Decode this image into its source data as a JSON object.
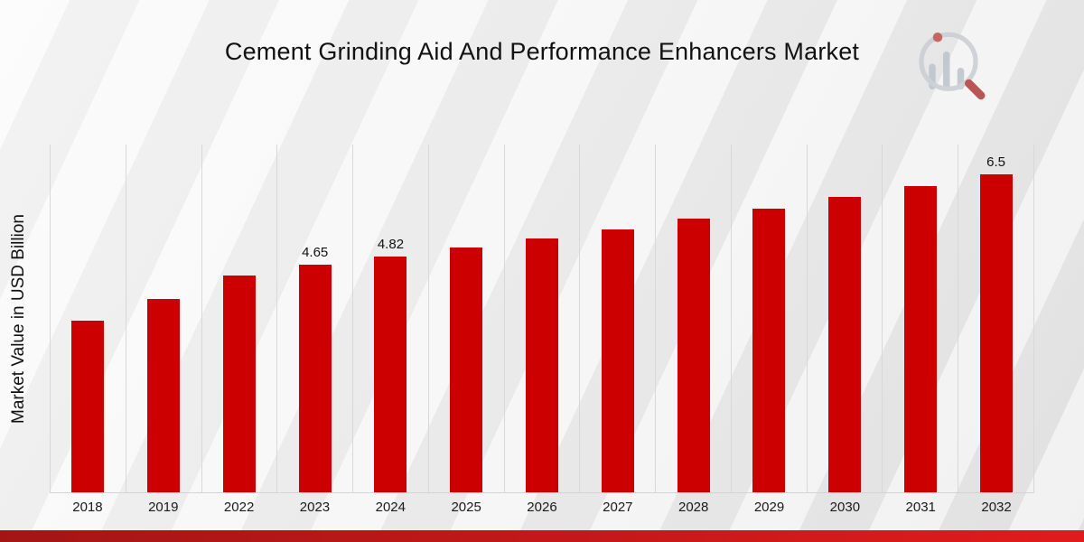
{
  "title": "Cement Grinding Aid And Performance Enhancers Market",
  "ylabel": "Market Value in USD Billion",
  "logo_name": "market-research-logo",
  "colors": {
    "bar": "#cc0000",
    "gridline": "#d8d8d8",
    "footer_gradient_start": "#a31515",
    "footer_gradient_end": "#e11b1b"
  },
  "chart_data": {
    "type": "bar",
    "title": "Cement Grinding Aid And Performance Enhancers Market",
    "xlabel": "",
    "ylabel": "Market Value in USD Billion",
    "categories": [
      "2018",
      "2019",
      "2022",
      "2023",
      "2024",
      "2025",
      "2026",
      "2027",
      "2028",
      "2029",
      "2030",
      "2031",
      "2032"
    ],
    "values": [
      3.5,
      3.95,
      4.43,
      4.65,
      4.82,
      5.0,
      5.18,
      5.37,
      5.58,
      5.8,
      6.03,
      6.26,
      6.5
    ],
    "data_labels": [
      "",
      "",
      "",
      "4.65",
      "4.82",
      "",
      "",
      "",
      "",
      "",
      "",
      "",
      "6.5"
    ],
    "ylim": [
      0,
      7.1
    ],
    "grid": "vertical",
    "legend": "none",
    "bar_color": "#cc0000"
  }
}
